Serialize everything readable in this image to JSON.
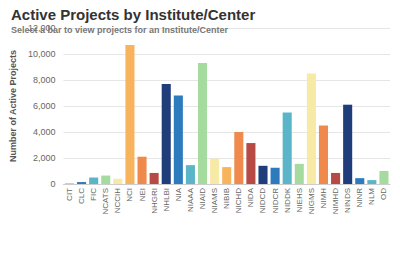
{
  "chart_data": {
    "type": "bar",
    "title": "Active Projects by Institute/Center",
    "subtitle": "Select a bar to view projects for an Institute/Center",
    "y_label": "Number of Active Projects",
    "categories": [
      "CIT",
      "CLC",
      "FIC",
      "NCATS",
      "NCCIH",
      "NCI",
      "NEI",
      "NHGRI",
      "NHLBI",
      "NIA",
      "NIAAA",
      "NIAID",
      "NIAMS",
      "NIBIB",
      "NICHD",
      "NIDA",
      "NIDCD",
      "NIDCR",
      "NIDDK",
      "NIEHS",
      "NIGMS",
      "NIMH",
      "NIMHD",
      "NINDS",
      "NINR",
      "NLM",
      "OD"
    ],
    "values": [
      20,
      150,
      500,
      650,
      400,
      10700,
      2100,
      850,
      7700,
      6800,
      1450,
      9300,
      1950,
      1300,
      4000,
      3150,
      1400,
      1250,
      5500,
      1550,
      8500,
      4500,
      850,
      6100,
      450,
      300,
      1000
    ],
    "colors": [
      "#1f3d7a",
      "#2c7bbd",
      "#5bb5c8",
      "#a6dba0",
      "#f7e9a6",
      "#f8b45c",
      "#ef8a4c",
      "#b84a45",
      "#1f3d7a",
      "#2c7bbd",
      "#5bb5c8",
      "#a6dba0",
      "#f7e9a6",
      "#f8b45c",
      "#ef8a4c",
      "#b84a45",
      "#1f3d7a",
      "#2c7bbd",
      "#5bb5c8",
      "#a6dba0",
      "#f7e9a6",
      "#ef8a4c",
      "#b84a45",
      "#1f3d7a",
      "#2c7bbd",
      "#5bb5c8",
      "#a6dba0"
    ],
    "ylim": [
      0,
      12000
    ],
    "yticks": [
      0,
      {
        "value": 2000,
        "label": "2,000"
      },
      {
        "value": 4000,
        "label": "4,000"
      },
      {
        "value": 6000,
        "label": "6,000"
      },
      {
        "value": 8000,
        "label": "8,000"
      },
      {
        "value": 10000,
        "label": "10,000"
      },
      {
        "value": 12000,
        "label": "12,000"
      }
    ],
    "grid": true
  }
}
